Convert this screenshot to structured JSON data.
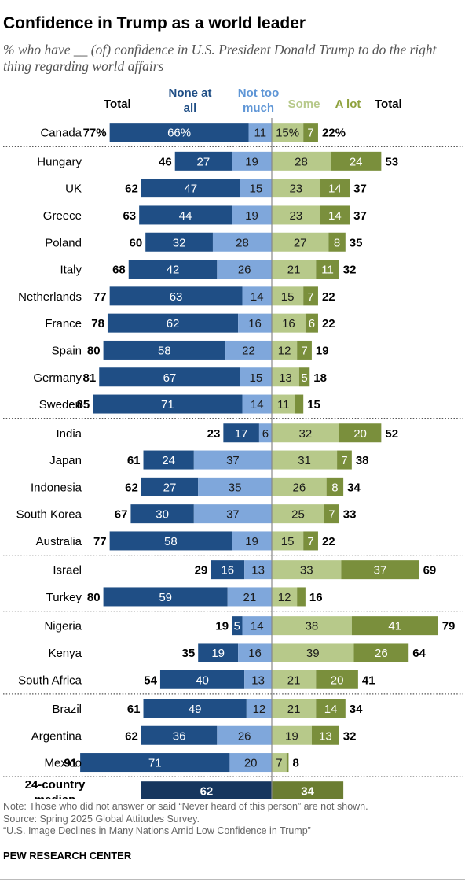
{
  "title": "Confidence in Trump as a world leader",
  "subtitle": "% who have __ (of) confidence in U.S. President Donald Trump to do the right thing regarding world affairs",
  "headers": {
    "total_left": "Total",
    "none_at_all": [
      "None at",
      "all"
    ],
    "not_too_much": [
      "Not too",
      "much"
    ],
    "some": "Some",
    "a_lot": "A lot",
    "total_right": "Total"
  },
  "colors": {
    "none_at_all": "#1f4e85",
    "not_too_much": "#7fa7db",
    "some": "#b7c98a",
    "a_lot": "#7a8f3c",
    "median_negative": "#16365e",
    "median_positive": "#6b7d32",
    "header_none": "#1f4e85",
    "header_not_too": "#5f96d6",
    "header_some": "#b7c98a",
    "header_a_lot": "#8fa23e",
    "center_axis": "#888888",
    "divider": "#555555"
  },
  "chart_data": {
    "type": "bar",
    "layout": "diverging-stacked",
    "series_order": [
      "None at all",
      "Not too much",
      "Some",
      "A lot"
    ],
    "groups": [
      {
        "rows": [
          {
            "country": "Canada",
            "none": 66,
            "not_too": 11,
            "some": 15,
            "a_lot": 7,
            "total_neg": 77,
            "total_pos": 22,
            "pct": true
          }
        ]
      },
      {
        "rows": [
          {
            "country": "Hungary",
            "none": 27,
            "not_too": 19,
            "some": 28,
            "a_lot": 24,
            "total_neg": 46,
            "total_pos": 53
          },
          {
            "country": "UK",
            "none": 47,
            "not_too": 15,
            "some": 23,
            "a_lot": 14,
            "total_neg": 62,
            "total_pos": 37
          },
          {
            "country": "Greece",
            "none": 44,
            "not_too": 19,
            "some": 23,
            "a_lot": 14,
            "total_neg": 63,
            "total_pos": 37
          },
          {
            "country": "Poland",
            "none": 32,
            "not_too": 28,
            "some": 27,
            "a_lot": 8,
            "total_neg": 60,
            "total_pos": 35
          },
          {
            "country": "Italy",
            "none": 42,
            "not_too": 26,
            "some": 21,
            "a_lot": 11,
            "total_neg": 68,
            "total_pos": 32
          },
          {
            "country": "Netherlands",
            "none": 63,
            "not_too": 14,
            "some": 15,
            "a_lot": 7,
            "total_neg": 77,
            "total_pos": 22
          },
          {
            "country": "France",
            "none": 62,
            "not_too": 16,
            "some": 16,
            "a_lot": 6,
            "total_neg": 78,
            "total_pos": 22
          },
          {
            "country": "Spain",
            "none": 58,
            "not_too": 22,
            "some": 12,
            "a_lot": 7,
            "total_neg": 80,
            "total_pos": 19
          },
          {
            "country": "Germany",
            "none": 67,
            "not_too": 15,
            "some": 13,
            "a_lot": 5,
            "total_neg": 81,
            "total_pos": 18
          },
          {
            "country": "Sweden",
            "none": 71,
            "not_too": 14,
            "some": 11,
            "a_lot": 4,
            "total_neg": 85,
            "total_pos": 15
          }
        ]
      },
      {
        "rows": [
          {
            "country": "India",
            "none": 17,
            "not_too": 6,
            "some": 32,
            "a_lot": 20,
            "total_neg": 23,
            "total_pos": 52
          },
          {
            "country": "Japan",
            "none": 24,
            "not_too": 37,
            "some": 31,
            "a_lot": 7,
            "total_neg": 61,
            "total_pos": 38
          },
          {
            "country": "Indonesia",
            "none": 27,
            "not_too": 35,
            "some": 26,
            "a_lot": 8,
            "total_neg": 62,
            "total_pos": 34
          },
          {
            "country": "South Korea",
            "none": 30,
            "not_too": 37,
            "some": 25,
            "a_lot": 7,
            "total_neg": 67,
            "total_pos": 33
          },
          {
            "country": "Australia",
            "none": 58,
            "not_too": 19,
            "some": 15,
            "a_lot": 7,
            "total_neg": 77,
            "total_pos": 22
          }
        ]
      },
      {
        "rows": [
          {
            "country": "Israel",
            "none": 16,
            "not_too": 13,
            "some": 33,
            "a_lot": 37,
            "total_neg": 29,
            "total_pos": 69
          },
          {
            "country": "Turkey",
            "none": 59,
            "not_too": 21,
            "some": 12,
            "a_lot": 4,
            "total_neg": 80,
            "total_pos": 16
          }
        ]
      },
      {
        "rows": [
          {
            "country": "Nigeria",
            "none": 5,
            "not_too": 14,
            "some": 38,
            "a_lot": 41,
            "total_neg": 19,
            "total_pos": 79
          },
          {
            "country": "Kenya",
            "none": 19,
            "not_too": 16,
            "some": 39,
            "a_lot": 26,
            "total_neg": 35,
            "total_pos": 64
          },
          {
            "country": "South Africa",
            "none": 40,
            "not_too": 13,
            "some": 21,
            "a_lot": 20,
            "total_neg": 54,
            "total_pos": 41
          }
        ]
      },
      {
        "rows": [
          {
            "country": "Brazil",
            "none": 49,
            "not_too": 12,
            "some": 21,
            "a_lot": 14,
            "total_neg": 61,
            "total_pos": 34
          },
          {
            "country": "Argentina",
            "none": 36,
            "not_too": 26,
            "some": 19,
            "a_lot": 13,
            "total_neg": 62,
            "total_pos": 32
          },
          {
            "country": "Mexico",
            "none": 71,
            "not_too": 20,
            "some": 7,
            "a_lot": 1,
            "total_neg": 91,
            "total_pos": 8
          }
        ]
      }
    ],
    "median": {
      "label": [
        "24-country",
        "median"
      ],
      "negative": 62,
      "positive": 34
    },
    "hidden_segment_labels": [
      {
        "country": "Sweden",
        "series": "a_lot"
      },
      {
        "country": "Turkey",
        "series": "a_lot"
      },
      {
        "country": "Mexico",
        "series": "a_lot"
      }
    ]
  },
  "notes": [
    "Note: Those who did not answer or said “Never heard of this person” are not shown.",
    "Source: Spring 2025 Global Attitudes Survey.",
    "“U.S. Image Declines in Many Nations Amid Low Confidence in Trump”"
  ],
  "source_org": "PEW RESEARCH CENTER"
}
